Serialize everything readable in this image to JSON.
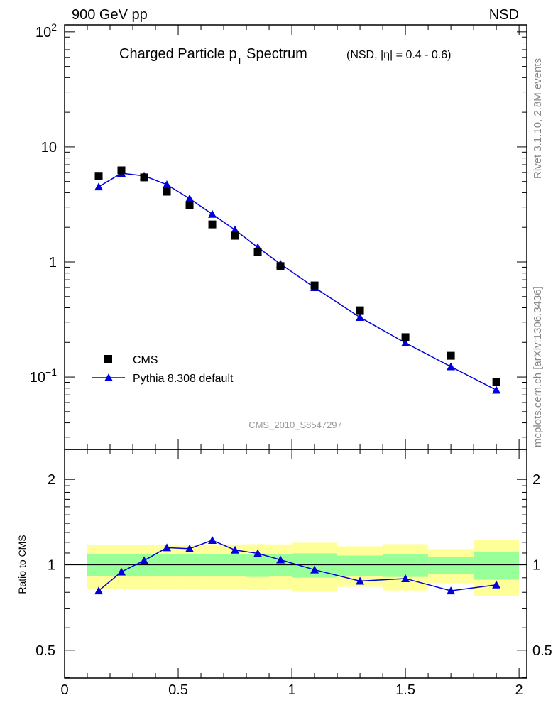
{
  "header": {
    "left": "900 GeV pp",
    "right": "NSD"
  },
  "side_text": {
    "top": "Rivet 3.1.10,  2.8M events",
    "bottom": "mcplots.cern.ch [arXiv:1306.3436]"
  },
  "chart_data": [
    {
      "type": "scatter",
      "title": "Charged Particle p",
      "title_sub": "T",
      "title_tail": " Spectrum",
      "subtitle": "(NSD, |η| = 0.4 - 0.6)",
      "watermark": "CMS_2010_S8547297",
      "yscale": "log",
      "xlim": [
        0,
        2.034
      ],
      "ylim": [
        0.0235,
        115
      ],
      "ytick_labels": [
        {
          "v": 100,
          "base": "10",
          "exp": "2"
        },
        {
          "v": 10,
          "base": "10",
          "exp": ""
        },
        {
          "v": 1,
          "base": "1",
          "exp": ""
        },
        {
          "v": 0.1,
          "base": "10",
          "exp": "−1"
        }
      ],
      "legend_position": "bottom-left",
      "series": [
        {
          "name": "CMS",
          "marker": "square",
          "color": "#000000",
          "x": [
            0.15,
            0.25,
            0.35,
            0.45,
            0.55,
            0.65,
            0.75,
            0.85,
            0.95,
            1.1,
            1.3,
            1.5,
            1.7,
            1.9
          ],
          "y": [
            5.6,
            6.25,
            5.43,
            4.08,
            3.12,
            2.12,
            1.69,
            1.22,
            0.92,
            0.625,
            0.38,
            0.222,
            0.153,
            0.0905
          ]
        },
        {
          "name": "Pythia 8.308 default",
          "marker": "triangle",
          "color": "#0000dd",
          "x": [
            0.15,
            0.25,
            0.35,
            0.45,
            0.55,
            0.65,
            0.75,
            0.85,
            0.95,
            1.1,
            1.3,
            1.5,
            1.7,
            1.9
          ],
          "y": [
            4.5,
            5.9,
            5.6,
            4.7,
            3.55,
            2.6,
            1.9,
            1.34,
            0.96,
            0.6,
            0.33,
            0.198,
            0.123,
            0.077
          ]
        }
      ]
    },
    {
      "type": "line",
      "ylabel": "Ratio to CMS",
      "yscale": "log",
      "xlim": [
        0,
        2.034
      ],
      "ylim": [
        0.399,
        2.55
      ],
      "xtick_labels": [
        "0",
        "0.5",
        "1",
        "1.5",
        "2"
      ],
      "xtick_values": [
        0,
        0.5,
        1,
        1.5,
        2
      ],
      "ytick_labels": [
        "2",
        "1",
        "0.5"
      ],
      "ytick_values": [
        2,
        1,
        0.5
      ],
      "band_bins": [
        0.1,
        0.2,
        0.3,
        0.4,
        0.5,
        0.6,
        0.7,
        0.8,
        0.9,
        1.0,
        1.2,
        1.4,
        1.6,
        1.8,
        2.0
      ],
      "band_yellow_lo": [
        0.822,
        0.822,
        0.822,
        0.822,
        0.822,
        0.818,
        0.818,
        0.815,
        0.818,
        0.803,
        0.836,
        0.812,
        0.86,
        0.776
      ],
      "band_yellow_hi": [
        1.175,
        1.175,
        1.175,
        1.175,
        1.175,
        1.18,
        1.18,
        1.182,
        1.18,
        1.196,
        1.162,
        1.182,
        1.135,
        1.224
      ],
      "band_green_lo": [
        0.912,
        0.912,
        0.912,
        0.912,
        0.912,
        0.91,
        0.91,
        0.906,
        0.91,
        0.901,
        0.912,
        0.906,
        0.928,
        0.886
      ],
      "band_green_hi": [
        1.09,
        1.09,
        1.09,
        1.09,
        1.09,
        1.092,
        1.092,
        1.094,
        1.092,
        1.097,
        1.078,
        1.09,
        1.066,
        1.11
      ],
      "colors": {
        "yellow": "#ffff99",
        "green": "#99ff99",
        "line": "#0000dd"
      },
      "ratio_x": [
        0.15,
        0.25,
        0.35,
        0.45,
        0.55,
        0.65,
        0.75,
        0.85,
        0.95,
        1.1,
        1.3,
        1.5,
        1.7,
        1.9
      ],
      "ratio_y": [
        0.81,
        0.944,
        1.035,
        1.149,
        1.14,
        1.22,
        1.127,
        1.097,
        1.041,
        0.96,
        0.876,
        0.894,
        0.81,
        0.85
      ]
    }
  ]
}
